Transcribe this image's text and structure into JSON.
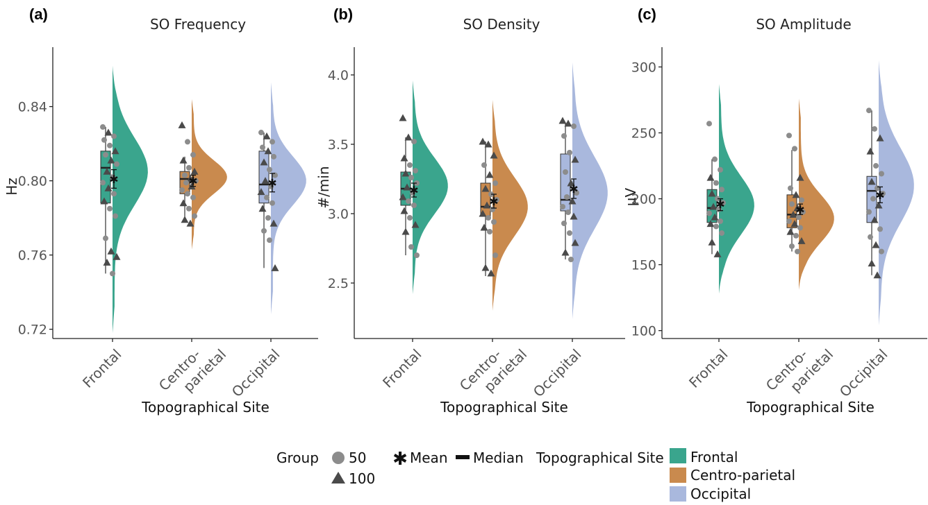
{
  "colors": {
    "frontal": "#3AA58D",
    "centro": "#C98A4E",
    "occipital": "#A9B8DD",
    "point": "#8C8C8C",
    "triangle": "#4A4A4A"
  },
  "legend": {
    "group_title": "Group",
    "group_items": [
      {
        "label": "50",
        "shape": "circle"
      },
      {
        "label": "100",
        "shape": "triangle"
      }
    ],
    "mean_label": "Mean",
    "median_label": "Median",
    "site_title": "Topographical Site",
    "site_items": [
      "Frontal",
      "Centro-parietal",
      "Occipital"
    ]
  },
  "chart_data": [
    {
      "type": "raincloud",
      "panel": "(a)",
      "title": "SO Frequency",
      "ylabel": "Hz",
      "xlabel": "Topographical  Site",
      "ylim": [
        0.715,
        0.872
      ],
      "yticks": [
        0.72,
        0.76,
        0.8,
        0.84
      ],
      "ytick_labels": [
        "0.72",
        "0.76",
        "0.80",
        "0.84"
      ],
      "categories": [
        {
          "name": "Frontal",
          "lines": [
            "Frontal"
          ]
        },
        {
          "name": "Centro-parietal",
          "lines": [
            "Centro-",
            "parietal"
          ]
        },
        {
          "name": "Occipital",
          "lines": [
            "Occipital"
          ]
        }
      ],
      "series": [
        {
          "name": "Frontal",
          "q1": 0.788,
          "median": 0.807,
          "q3": 0.816,
          "whisker_low": 0.75,
          "whisker_high": 0.829,
          "mean": 0.801,
          "mean_low": 0.796,
          "mean_high": 0.806,
          "dens_low": 0.718,
          "dens_high": 0.862,
          "dens_peak": 0.805,
          "dens_sd": 0.018,
          "points": [
            0.829,
            0.826,
            0.824,
            0.822,
            0.819,
            0.816,
            0.814,
            0.811,
            0.809,
            0.805,
            0.802,
            0.799,
            0.796,
            0.793,
            0.789,
            0.785,
            0.781,
            0.769,
            0.762,
            0.759,
            0.756,
            0.75
          ],
          "shapes": [
            "c",
            "t",
            "c",
            "c",
            "c",
            "t",
            "c",
            "t",
            "c",
            "t",
            "c",
            "c",
            "t",
            "c",
            "t",
            "c",
            "c",
            "c",
            "t",
            "t",
            "t",
            "c"
          ]
        },
        {
          "name": "Centro-parietal",
          "q1": 0.793,
          "median": 0.801,
          "q3": 0.805,
          "whisker_low": 0.78,
          "whisker_high": 0.813,
          "mean": 0.8,
          "mean_low": 0.797,
          "mean_high": 0.803,
          "dens_low": 0.763,
          "dens_high": 0.844,
          "dens_peak": 0.802,
          "dens_sd": 0.009,
          "points": [
            0.83,
            0.821,
            0.814,
            0.811,
            0.807,
            0.805,
            0.803,
            0.801,
            0.8,
            0.799,
            0.797,
            0.795,
            0.793,
            0.791,
            0.788,
            0.785,
            0.781,
            0.779,
            0.777
          ],
          "shapes": [
            "t",
            "c",
            "c",
            "t",
            "c",
            "t",
            "c",
            "t",
            "c",
            "c",
            "t",
            "c",
            "c",
            "c",
            "t",
            "c",
            "c",
            "t",
            "t"
          ]
        },
        {
          "name": "Occipital",
          "q1": 0.788,
          "median": 0.798,
          "q3": 0.816,
          "whisker_low": 0.753,
          "whisker_high": 0.826,
          "mean": 0.799,
          "mean_low": 0.794,
          "mean_high": 0.804,
          "dens_low": 0.728,
          "dens_high": 0.853,
          "dens_peak": 0.8,
          "dens_sd": 0.013,
          "points": [
            0.826,
            0.824,
            0.821,
            0.818,
            0.816,
            0.813,
            0.81,
            0.806,
            0.803,
            0.8,
            0.797,
            0.794,
            0.791,
            0.788,
            0.785,
            0.78,
            0.777,
            0.773,
            0.768,
            0.753
          ],
          "shapes": [
            "c",
            "t",
            "c",
            "c",
            "t",
            "c",
            "t",
            "c",
            "c",
            "t",
            "c",
            "t",
            "c",
            "c",
            "t",
            "c",
            "t",
            "c",
            "c",
            "t"
          ]
        }
      ]
    },
    {
      "type": "raincloud",
      "panel": "(b)",
      "title": "SO Density",
      "ylabel": "#/min",
      "xlabel": "Topographical Site",
      "ylim": [
        2.1,
        4.2
      ],
      "yticks": [
        2.5,
        3.0,
        3.5,
        4.0
      ],
      "ytick_labels": [
        "2.5",
        "3.0",
        "3.5",
        "4.0"
      ],
      "categories": [
        {
          "name": "Frontal",
          "lines": [
            "Frontal"
          ]
        },
        {
          "name": "Centro-parietal",
          "lines": [
            "Centro-",
            "parietal"
          ]
        },
        {
          "name": "Occipital",
          "lines": [
            "Occipital"
          ]
        }
      ],
      "series": [
        {
          "name": "Frontal",
          "q1": 3.06,
          "median": 3.18,
          "q3": 3.3,
          "whisker_low": 2.7,
          "whisker_high": 3.55,
          "mean": 3.17,
          "mean_low": 3.12,
          "mean_high": 3.22,
          "dens_low": 2.42,
          "dens_high": 3.96,
          "dens_peak": 3.2,
          "dens_sd": 0.2,
          "points": [
            3.69,
            3.55,
            3.52,
            3.4,
            3.35,
            3.31,
            3.29,
            3.26,
            3.22,
            3.19,
            3.15,
            3.12,
            3.09,
            3.06,
            3.02,
            2.97,
            2.92,
            2.87,
            2.76,
            2.7
          ],
          "shapes": [
            "t",
            "t",
            "c",
            "t",
            "c",
            "c",
            "t",
            "c",
            "c",
            "t",
            "c",
            "t",
            "c",
            "c",
            "t",
            "c",
            "t",
            "t",
            "c",
            "c"
          ]
        },
        {
          "name": "Centro-parietal",
          "q1": 2.98,
          "median": 3.05,
          "q3": 3.22,
          "whisker_low": 2.55,
          "whisker_high": 3.52,
          "mean": 3.09,
          "mean_low": 3.04,
          "mean_high": 3.14,
          "dens_low": 2.3,
          "dens_high": 3.82,
          "dens_peak": 3.05,
          "dens_sd": 0.21,
          "points": [
            3.52,
            3.5,
            3.42,
            3.35,
            3.28,
            3.22,
            3.18,
            3.14,
            3.1,
            3.06,
            3.03,
            3.0,
            2.97,
            2.94,
            2.9,
            2.87,
            2.7,
            2.61,
            2.57
          ],
          "shapes": [
            "t",
            "t",
            "t",
            "c",
            "t",
            "c",
            "t",
            "c",
            "c",
            "t",
            "c",
            "t",
            "c",
            "c",
            "t",
            "c",
            "c",
            "t",
            "t"
          ]
        },
        {
          "name": "Occipital",
          "q1": 3.02,
          "median": 3.1,
          "q3": 3.43,
          "whisker_low": 2.67,
          "whisker_high": 3.65,
          "mean": 3.18,
          "mean_low": 3.11,
          "mean_high": 3.25,
          "dens_low": 2.24,
          "dens_high": 4.09,
          "dens_peak": 3.15,
          "dens_sd": 0.26,
          "points": [
            3.67,
            3.65,
            3.63,
            3.56,
            3.44,
            3.39,
            3.3,
            3.22,
            3.15,
            3.12,
            3.09,
            3.05,
            3.01,
            2.98,
            2.93,
            2.86,
            2.79,
            2.72,
            2.67
          ],
          "shapes": [
            "t",
            "t",
            "c",
            "c",
            "c",
            "t",
            "c",
            "t",
            "c",
            "c",
            "t",
            "c",
            "c",
            "t",
            "c",
            "c",
            "t",
            "t",
            "c"
          ]
        }
      ]
    },
    {
      "type": "raincloud",
      "panel": "(c)",
      "title": "SO Amplitude",
      "ylabel": "µV",
      "xlabel": "Topographical Site",
      "ylim": [
        94,
        315
      ],
      "yticks": [
        100,
        150,
        200,
        250,
        300
      ],
      "ytick_labels": [
        "100",
        "150",
        "200",
        "250",
        "300"
      ],
      "categories": [
        {
          "name": "Frontal",
          "lines": [
            "Frontal"
          ]
        },
        {
          "name": "Centro-parietal",
          "lines": [
            "Centro-",
            "parietal"
          ]
        },
        {
          "name": "Occipital",
          "lines": [
            "Occipital"
          ]
        }
      ],
      "series": [
        {
          "name": "Frontal",
          "q1": 182,
          "median": 193,
          "q3": 207,
          "whisker_low": 158,
          "whisker_high": 230,
          "mean": 196,
          "mean_low": 191,
          "mean_high": 200,
          "dens_low": 128,
          "dens_high": 287,
          "dens_peak": 195,
          "dens_sd": 22,
          "points": [
            257,
            230,
            222,
            216,
            212,
            207,
            204,
            200,
            197,
            194,
            192,
            189,
            186,
            183,
            181,
            179,
            174,
            167,
            158
          ],
          "shapes": [
            "c",
            "c",
            "c",
            "t",
            "c",
            "c",
            "t",
            "c",
            "c",
            "t",
            "c",
            "c",
            "t",
            "c",
            "t",
            "c",
            "c",
            "t",
            "t"
          ]
        },
        {
          "name": "Centro-parietal",
          "q1": 178,
          "median": 188,
          "q3": 203,
          "whisker_low": 160,
          "whisker_high": 237,
          "mean": 192,
          "mean_low": 188,
          "mean_high": 196,
          "dens_low": 131,
          "dens_high": 276,
          "dens_peak": 185,
          "dens_sd": 18,
          "points": [
            248,
            238,
            216,
            208,
            203,
            199,
            196,
            193,
            190,
            188,
            186,
            183,
            181,
            178,
            175,
            172,
            168,
            164,
            160
          ],
          "shapes": [
            "c",
            "c",
            "t",
            "c",
            "t",
            "c",
            "c",
            "t",
            "c",
            "t",
            "c",
            "c",
            "t",
            "c",
            "t",
            "c",
            "t",
            "c",
            "c"
          ]
        },
        {
          "name": "Occipital",
          "q1": 182,
          "median": 206,
          "q3": 217,
          "whisker_low": 142,
          "whisker_high": 267,
          "mean": 203,
          "mean_low": 197,
          "mean_high": 209,
          "dens_low": 104,
          "dens_high": 305,
          "dens_peak": 210,
          "dens_sd": 28,
          "points": [
            267,
            253,
            246,
            236,
            225,
            219,
            213,
            208,
            204,
            200,
            195,
            190,
            184,
            177,
            171,
            165,
            160,
            151,
            142
          ],
          "shapes": [
            "c",
            "c",
            "t",
            "t",
            "c",
            "c",
            "t",
            "c",
            "c",
            "c",
            "t",
            "c",
            "t",
            "c",
            "c",
            "t",
            "c",
            "t",
            "t"
          ]
        }
      ]
    }
  ]
}
